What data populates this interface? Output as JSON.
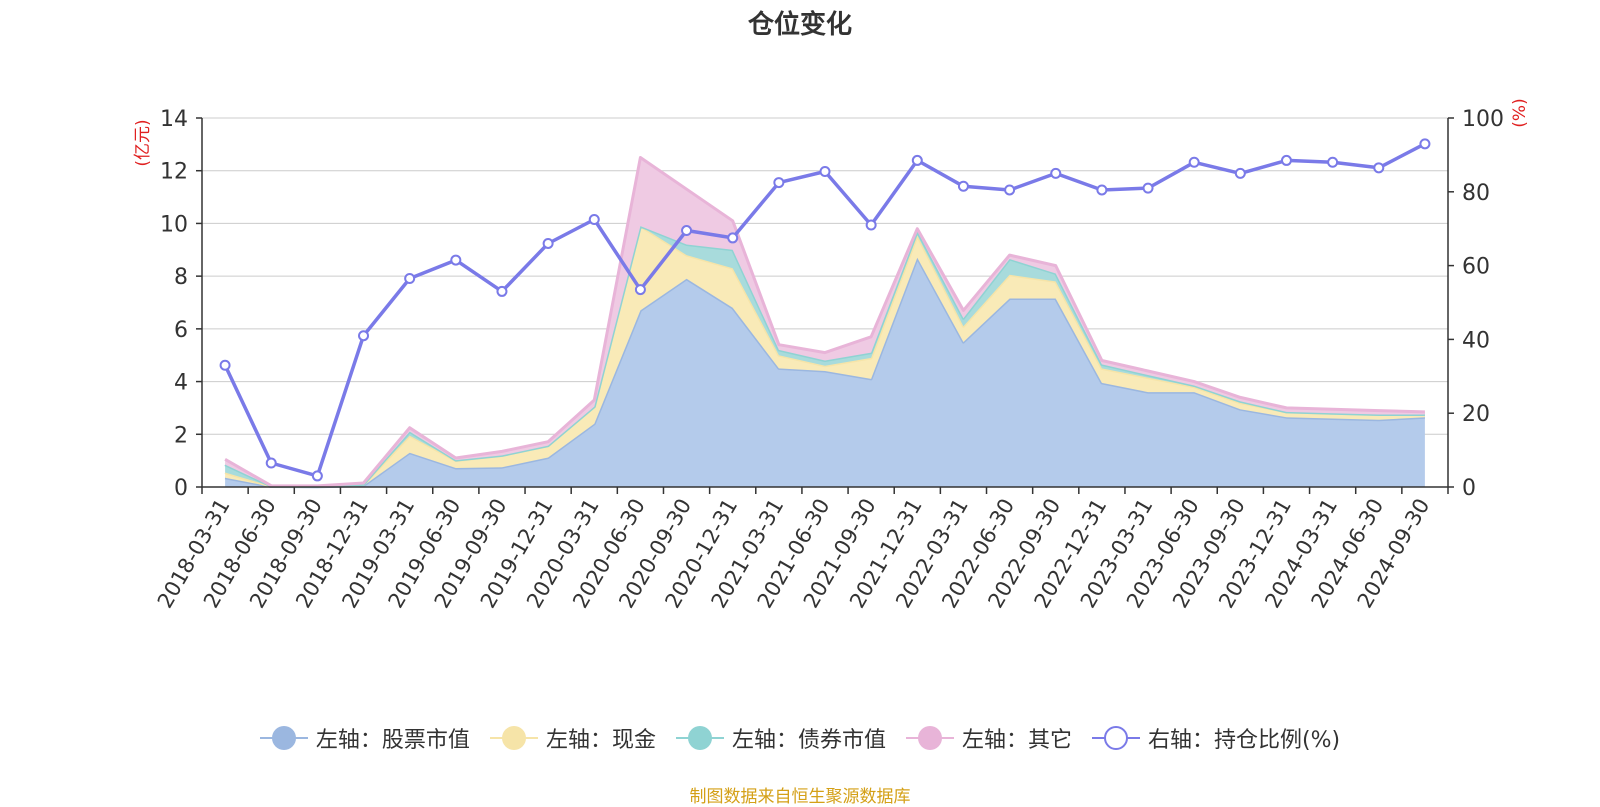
{
  "chart_data": {
    "type": "area",
    "title": "仓位变化",
    "left_axis": {
      "unit_label": "(亿元)",
      "ylim": [
        0,
        14
      ],
      "ticks": [
        0,
        2,
        4,
        6,
        8,
        10,
        12,
        14
      ]
    },
    "right_axis": {
      "unit_label": "(%)",
      "ylim": [
        0,
        100
      ],
      "ticks": [
        0,
        20,
        40,
        60,
        80,
        100
      ]
    },
    "categories": [
      "2018-03-31",
      "2018-06-30",
      "2018-09-30",
      "2018-12-31",
      "2019-03-31",
      "2019-06-30",
      "2019-09-30",
      "2019-12-31",
      "2020-03-31",
      "2020-06-30",
      "2020-09-30",
      "2020-12-31",
      "2021-03-31",
      "2021-06-30",
      "2021-09-30",
      "2021-12-31",
      "2022-03-31",
      "2022-06-30",
      "2022-09-30",
      "2022-12-31",
      "2023-03-31",
      "2023-06-30",
      "2023-09-30",
      "2023-12-31",
      "2024-03-31",
      "2024-06-30",
      "2024-09-30"
    ],
    "series": [
      {
        "name": "左轴：股票市值",
        "axis": "left",
        "kind": "stacked-area",
        "color": "#9bb7e0",
        "fill": "#b4cbeb",
        "values": [
          0.35,
          0.02,
          0.01,
          0.05,
          1.3,
          0.72,
          0.75,
          1.12,
          2.4,
          6.7,
          7.9,
          6.8,
          4.5,
          4.4,
          4.1,
          8.7,
          5.5,
          7.15,
          7.15,
          3.95,
          3.6,
          3.6,
          2.95,
          2.65,
          2.6,
          2.55,
          2.65
        ]
      },
      {
        "name": "左轴：现金",
        "axis": "left",
        "kind": "stacked-area",
        "color": "#f6e4a8",
        "fill": "#f9eab7",
        "values": [
          0.2,
          0.01,
          0.01,
          0.05,
          0.65,
          0.28,
          0.45,
          0.45,
          0.65,
          3.2,
          0.9,
          1.5,
          0.5,
          0.2,
          0.8,
          0.85,
          0.6,
          0.9,
          0.65,
          0.55,
          0.55,
          0.2,
          0.25,
          0.2,
          0.2,
          0.2,
          0.1
        ]
      },
      {
        "name": "左轴：债券市值",
        "axis": "left",
        "kind": "stacked-area",
        "color": "#8fd3d3",
        "fill": "#a8dbdc",
        "values": [
          0.3,
          0.0,
          0.0,
          0.0,
          0.15,
          0.02,
          0.0,
          0.0,
          0.0,
          0.0,
          0.4,
          0.7,
          0.2,
          0.2,
          0.2,
          0.15,
          0.3,
          0.6,
          0.3,
          0.15,
          0.1,
          0.05,
          0.05,
          0.0,
          0.0,
          0.0,
          0.0
        ]
      },
      {
        "name": "左轴：其它",
        "axis": "left",
        "kind": "stacked-area",
        "color": "#e8b4d8",
        "fill": "#efcae3",
        "values": [
          0.2,
          0.02,
          0.02,
          0.05,
          0.15,
          0.08,
          0.15,
          0.15,
          0.25,
          2.6,
          2.1,
          1.1,
          0.2,
          0.3,
          0.6,
          0.1,
          0.3,
          0.15,
          0.3,
          0.15,
          0.15,
          0.15,
          0.15,
          0.15,
          0.15,
          0.15,
          0.1
        ]
      },
      {
        "name": "右轴：持仓比例(%)",
        "axis": "right",
        "kind": "line",
        "color": "#7a7ae8",
        "values": [
          33,
          6.5,
          3,
          41,
          56.5,
          61.5,
          53,
          66,
          72.5,
          53.5,
          69.5,
          67.5,
          82.5,
          85.5,
          71,
          88.5,
          81.5,
          80.5,
          85,
          80.5,
          81,
          88,
          85,
          88.5,
          88,
          86.5,
          93
        ]
      }
    ]
  },
  "legend": [
    {
      "label": "左轴：股票市值",
      "color": "#9bb7e0",
      "hollow": false
    },
    {
      "label": "左轴：现金",
      "color": "#f6e4a8",
      "hollow": false
    },
    {
      "label": "左轴：债券市值",
      "color": "#8fd3d3",
      "hollow": false
    },
    {
      "label": "左轴：其它",
      "color": "#e8b4d8",
      "hollow": false
    },
    {
      "label": "右轴：持仓比例(%)",
      "color": "#7a7ae8",
      "hollow": true
    }
  ],
  "footer": {
    "source": "制图数据来自恒生聚源数据库"
  },
  "colors": {
    "axis_unit": "#e02020",
    "grid": "#cccccc",
    "axis": "#333333",
    "text": "#333333",
    "footer": "#d4a017"
  }
}
